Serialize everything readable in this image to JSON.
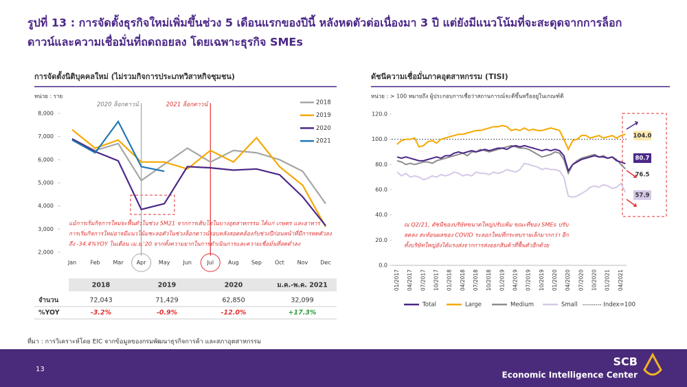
{
  "header": {
    "title_lines": [
      "รูปที่ 13 : การจัดตั้งธุรกิจใหม่เพิ่มขึ้นช่วง 5 เดือนแรกของปีนี้ หลังหดตัวต่อเนื่องมา 3 ปี แต่ยังมีแนวโน้มที่จะสะดุดจากการล็อก",
      "ดาวน์และความเชื่อมั่นที่ถดถอยลง โดยเฉพาะธุรกิจ SMEs"
    ]
  },
  "chart_data": [
    {
      "type": "line",
      "title": "การจัดตั้งนิติบุคคลใหม่ (ไม่รวมกิจการประเภทวิสาหกิจชุมชน)",
      "unit": "หน่วย : ราย",
      "categories": [
        "Jan",
        "Feb",
        "Mar",
        "Apr",
        "May",
        "Jun",
        "Jul",
        "Aug",
        "Sep",
        "Oct",
        "Nov",
        "Dec"
      ],
      "series": [
        {
          "name": "2018",
          "color": "#a6a6a6",
          "values": [
            6900,
            6400,
            6700,
            5100,
            5800,
            6500,
            5900,
            6400,
            6300,
            6000,
            5500,
            4100
          ]
        },
        {
          "name": "2019",
          "color": "#f5a800",
          "values": [
            7300,
            6500,
            6850,
            5900,
            5900,
            5600,
            6400,
            5900,
            6950,
            5700,
            4900,
            3100
          ]
        },
        {
          "name": "2020",
          "color": "#4b2787",
          "values": [
            6900,
            6350,
            5950,
            3850,
            4100,
            5700,
            5650,
            5550,
            5600,
            5350,
            4400,
            3150
          ]
        },
        {
          "name": "2021",
          "color": "#1f77b4",
          "values": [
            6850,
            6300,
            7650,
            5700,
            5500,
            null,
            null,
            null,
            null,
            null,
            null,
            null
          ]
        }
      ],
      "ylim": [
        2000,
        8000
      ],
      "yticks": [
        {
          "value": 2000,
          "label": "2,000"
        },
        {
          "value": 3000,
          "label": "3,000"
        },
        {
          "value": 4000,
          "label": "4,000"
        },
        {
          "value": 5000,
          "label": "5,000"
        },
        {
          "value": 6000,
          "label": "6,000"
        },
        {
          "value": 7000,
          "label": "7,000"
        },
        {
          "value": 8000,
          "label": "8,000"
        }
      ],
      "annotations": [
        "2020 ล็อกดาวน์",
        "2021 ล็อกดาวน์"
      ],
      "note_lines": [
        "แม้การเริ่มกิจการใหม่จะฟื้นตัวในช่วง 5M21 จากการเติบโตในบางอุตสาหกรรม ได้แก่ เกษตร และอาหาร",
        "การเริ่มกิจการใหม่อาจมีแนวโน้มชะลอตัวในช่วงล็อกดาวน์รอบหลังสอดคล้องกับช่วงปีก่อนหน้าที่มีการหดตัวลง",
        "ถึง -34.4%YOY ในเดือน เม.ย.'20 จากทั้งความยากในการดำเนินการและความเชื่อมั่นที่ลดต่ำลง"
      ]
    },
    {
      "type": "line",
      "title": "ดัชนีความเชื่อมั่นภาคอุตสาหกรรม (TISI)",
      "unit": "หน่วย : > 100 หมายถึง ผู้ประกอบการเชื่อว่าสถานการณ์จะดีขึ้นหรืออยู่ในเกณฑ์ดี",
      "categories": [
        "01/2017",
        null,
        null,
        "04/2017",
        null,
        null,
        "07/2017",
        null,
        null,
        "10/2017",
        null,
        null,
        "01/2018",
        null,
        null,
        "04/2018",
        null,
        null,
        "07/2018",
        null,
        null,
        "10/2018",
        null,
        null,
        "01/2019",
        null,
        null,
        "04/2019",
        null,
        null,
        "07/2019",
        null,
        null,
        "10/2019",
        null,
        null,
        "01/2020",
        null,
        null,
        "04/2020",
        null,
        null,
        "07/2020",
        null,
        null,
        "10/2020",
        null,
        null,
        "01/2021",
        null,
        null,
        "04/2021",
        null
      ],
      "series": [
        {
          "name": "Total",
          "color": "#4b2787",
          "values": [
            86,
            85,
            86,
            85,
            84,
            83,
            83,
            84,
            85,
            86,
            85,
            87,
            87,
            89,
            90,
            89,
            90,
            91,
            90,
            91,
            92,
            91,
            92,
            93,
            93,
            92,
            94,
            95,
            94,
            95,
            94,
            93,
            92,
            91,
            92,
            91,
            92,
            91,
            87,
            75,
            80,
            82,
            84,
            85,
            86,
            87,
            86,
            86,
            85,
            86,
            83,
            82,
            80.7
          ]
        },
        {
          "name": "Large",
          "color": "#f5a800",
          "values": [
            96,
            99,
            100,
            100,
            101,
            94,
            95,
            98,
            99,
            97,
            100,
            101,
            102,
            103,
            104,
            104,
            105,
            106,
            107,
            107,
            108,
            109,
            110,
            110,
            111,
            110,
            107,
            108,
            107,
            109,
            107,
            108,
            107,
            107,
            108,
            109,
            108,
            107,
            100,
            92,
            99,
            100,
            103,
            103,
            101,
            102,
            103,
            101,
            102,
            103,
            101,
            103,
            104
          ],
          "value_labels": [
            null,
            null,
            null,
            null,
            null,
            null,
            null,
            null,
            null,
            null,
            null,
            null,
            null,
            null,
            null,
            null,
            null,
            null,
            null,
            null,
            null,
            null,
            null,
            null,
            null,
            null,
            null,
            null,
            null,
            null,
            null,
            null,
            null,
            null,
            null,
            null,
            null,
            null,
            null,
            null,
            null,
            null,
            null,
            null,
            null,
            null,
            null,
            null,
            null,
            null,
            null,
            null,
            "104.0"
          ]
        },
        {
          "name": "Medium",
          "color": "#8c8c8c",
          "values": [
            83,
            82,
            80,
            81,
            80,
            81,
            82,
            82,
            81,
            83,
            84,
            85,
            86,
            87,
            88,
            89,
            87,
            90,
            90,
            92,
            91,
            90,
            91,
            92,
            93,
            94,
            95,
            94,
            93,
            93,
            92,
            90,
            88,
            86,
            87,
            88,
            90,
            89,
            84,
            73,
            80,
            83,
            85,
            86,
            87,
            88,
            86,
            87,
            85,
            86,
            84,
            80,
            76.5
          ]
        },
        {
          "name": "Small",
          "color": "#d5c8e6",
          "values": [
            74,
            71,
            73,
            70,
            71,
            70,
            68,
            69,
            71,
            70,
            72,
            71,
            72,
            74,
            73,
            71,
            72,
            71,
            74,
            73,
            73,
            72,
            74,
            73,
            74,
            76,
            75,
            74,
            76,
            81,
            80,
            79,
            78,
            76,
            77,
            76,
            76,
            75,
            70,
            55,
            54,
            55,
            57,
            59,
            62,
            63,
            62,
            64,
            63,
            61,
            62,
            65,
            57.9
          ]
        }
      ],
      "reference": {
        "value": 100,
        "label": "--------- Index=100"
      },
      "ylim": [
        0,
        120
      ],
      "yticks": [
        {
          "value": 0,
          "label": "0.0"
        },
        {
          "value": 20,
          "label": "20.0"
        },
        {
          "value": 40,
          "label": "40.0"
        },
        {
          "value": 60,
          "label": "60.0"
        },
        {
          "value": 80,
          "label": "80.0"
        },
        {
          "value": 100,
          "label": "100.0"
        },
        {
          "value": 120,
          "label": "120.0"
        }
      ],
      "note_lines": [
        "ณ Q2/21, ดัชนีของบริษัทขนาดใหญ่ปรับเพิ่ม ขณะที่ของ SMEs ปรับ",
        "ลดลง สะท้อนผลของ COVID ระลอกใหม่ที่กระทบรายเล็กมากกว่า อีก",
        "ทั้งบริษัทใหญ่ยังได้แรงส่งจากการส่งออกสินค้าที่ฟื้นตัวอีกด้วย"
      ]
    }
  ],
  "table": {
    "header": [
      "2018",
      "2019",
      "2020",
      "ม.ค.-พ.ค. 2021"
    ],
    "rows": [
      [
        "จำนวน",
        "72,043",
        "71,429",
        "62,850",
        "32,099"
      ],
      [
        "%YOY",
        "-3.2%",
        "-0.9%",
        "-12.0%",
        "+17.3%"
      ]
    ]
  },
  "source": "ที่มา : การวิเคราะห์โดย EIC จากข้อมูลของกรมพัฒนาธุรกิจการค้า และสภาอุตสาหกรรม",
  "footer": {
    "page": "13",
    "brand": "SCB",
    "unit": "Economic Intelligence Center"
  }
}
